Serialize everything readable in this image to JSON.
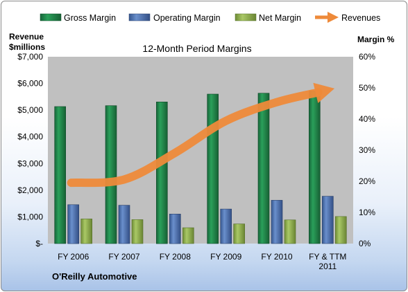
{
  "chart_data": {
    "type": "bar",
    "title": "12-Month Period Margins",
    "categories": [
      [
        "FY 2006"
      ],
      [
        "FY 2007"
      ],
      [
        "FY 2008"
      ],
      [
        "FY 2009"
      ],
      [
        "FY 2010"
      ],
      [
        "FY & TTM",
        "2011"
      ]
    ],
    "y_left": {
      "label_lines": [
        "Revenue",
        "$millions"
      ],
      "ticks": [
        "$-",
        "$1,000",
        "$2,000",
        "$3,000",
        "$4,000",
        "$5,000",
        "$6,000",
        "$7,000"
      ],
      "range": [
        0,
        7000
      ]
    },
    "y_right": {
      "label": "Margin %",
      "ticks": [
        "0%",
        "10%",
        "20%",
        "30%",
        "40%",
        "50%",
        "60%"
      ],
      "range": [
        0,
        60
      ]
    },
    "series": [
      {
        "name": "Gross Margin",
        "axis": "right",
        "kind": "bar",
        "color": "#1e7e45",
        "values": [
          44.0,
          44.3,
          45.5,
          48.0,
          48.3,
          49.0
        ]
      },
      {
        "name": "Operating Margin",
        "axis": "right",
        "kind": "bar",
        "color": "#4a6fae",
        "values": [
          12.5,
          12.3,
          9.5,
          11.1,
          13.9,
          15.2
        ]
      },
      {
        "name": "Net Margin",
        "axis": "right",
        "kind": "bar",
        "color": "#8aaa4a",
        "values": [
          7.9,
          7.7,
          5.1,
          6.3,
          7.6,
          8.7
        ]
      },
      {
        "name": "Revenues",
        "axis": "left",
        "kind": "arrow-line",
        "color": "#ee8a3a",
        "values": [
          2280,
          2400,
          3400,
          4600,
          5300,
          5750
        ]
      }
    ],
    "legend_position": "top",
    "grid": false,
    "plot_background": "#c0c0c0"
  },
  "company": "O'Reilly Automotive"
}
